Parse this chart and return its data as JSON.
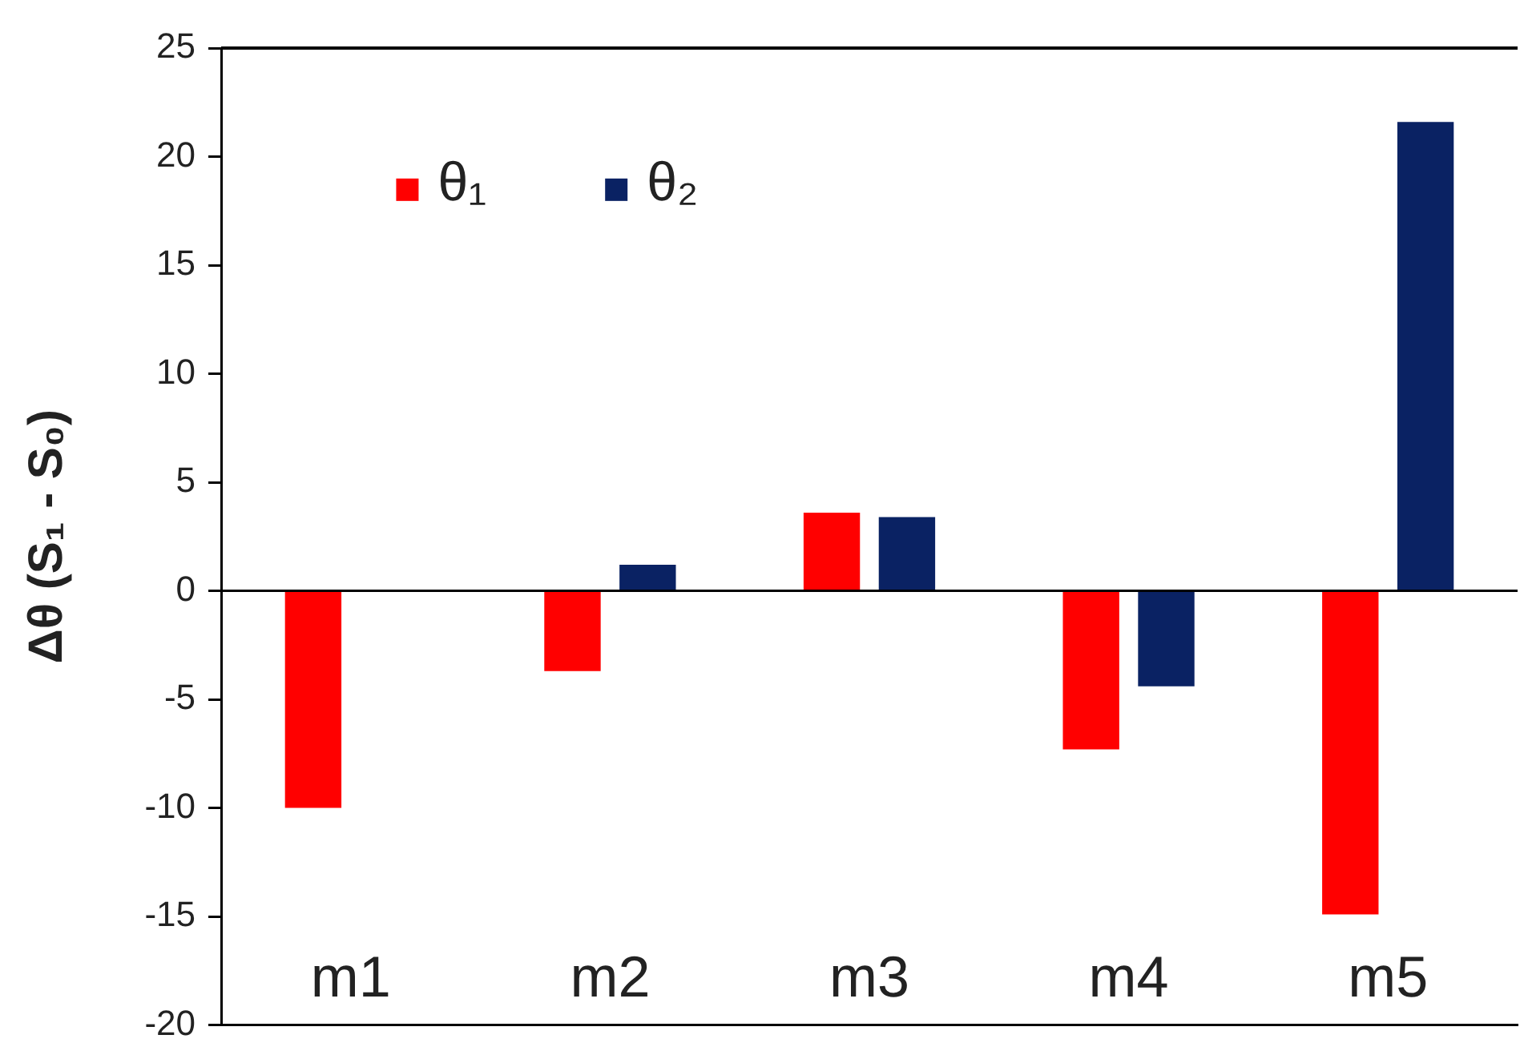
{
  "chart_data": {
    "type": "bar",
    "ylabel": "Δθ (S₁ - S₀)",
    "categories": [
      "m1",
      "m2",
      "m3",
      "m4",
      "m5"
    ],
    "series": [
      {
        "name": "θ₁",
        "color": "#ff0000",
        "values": [
          -10,
          -3.7,
          3.6,
          -7.3,
          -14.9
        ]
      },
      {
        "name": "θ₂",
        "color": "#0a2263",
        "values": [
          null,
          1.2,
          3.4,
          -4.4,
          21.6
        ]
      }
    ],
    "ylim": [
      -20,
      25
    ],
    "yticks": [
      -20,
      -15,
      -10,
      -5,
      0,
      5,
      10,
      15,
      20,
      25
    ],
    "legend": "top left"
  }
}
